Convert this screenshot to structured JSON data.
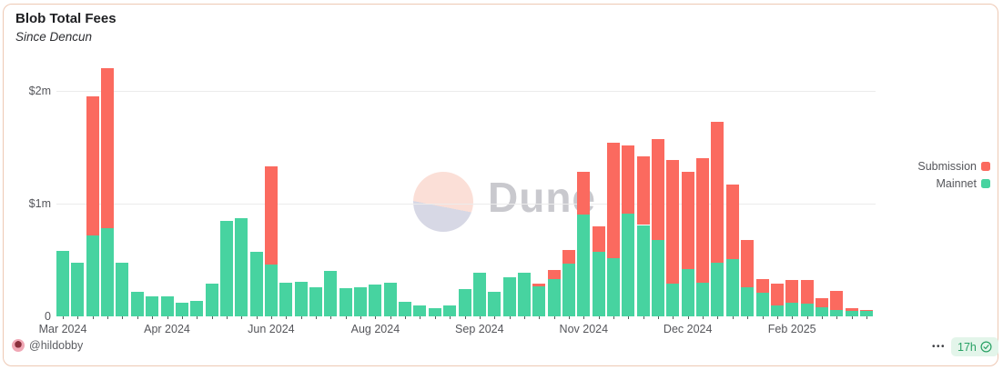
{
  "card": {
    "title": "Blob Total Fees",
    "subtitle": "Since Dencun",
    "watermark": "Dune",
    "footer": {
      "author": "@hildobby",
      "menu": "•••",
      "refresh_badge": "17h",
      "refresh_icon": "check-circle-icon"
    }
  },
  "legend": [
    {
      "label": "Submission",
      "color": "#fb6a5f"
    },
    {
      "label": "Mainnet",
      "color": "#47d3a0"
    }
  ],
  "colors": {
    "submission": "#fb6a5f",
    "mainnet": "#47d3a0",
    "card_border": "#eec9b4",
    "gridline": "#ececec",
    "axis_text": "#55565b",
    "badge_bg": "#e3f5ea",
    "badge_text": "#28a164",
    "watermark_text": "#c9c9ce",
    "watermark_pink": "#fbdfd7",
    "watermark_lavender": "#d7d8e5"
  },
  "chart_data": {
    "type": "bar",
    "stacked": true,
    "title": "Blob Total Fees",
    "subtitle": "Since Dencun",
    "unit": "USD millions",
    "grid": "horizontal",
    "legend_position": "right",
    "ylim": [
      0,
      2.3
    ],
    "y_ticks": [
      {
        "label": "0",
        "value": 0
      },
      {
        "label": "$1m",
        "value": 1
      },
      {
        "label": "$2m",
        "value": 2
      }
    ],
    "x_tick_labels": [
      "Mar 2024",
      "Apr 2024",
      "Jun 2024",
      "Aug 2024",
      "Sep 2024",
      "Nov 2024",
      "Dec 2024",
      "Feb 2025"
    ],
    "x_tick_bar_indices": [
      0,
      7,
      14,
      21,
      28,
      35,
      42,
      49
    ],
    "x_description": "weekly bars since Dencun upgrade (Mar 2024 - Mar 2025)",
    "series": [
      {
        "name": "Mainnet",
        "color": "#47d3a0",
        "values": [
          0.58,
          0.48,
          0.72,
          0.78,
          0.48,
          0.22,
          0.18,
          0.18,
          0.12,
          0.14,
          0.29,
          0.85,
          0.87,
          0.57,
          0.46,
          0.3,
          0.31,
          0.26,
          0.4,
          0.25,
          0.26,
          0.28,
          0.3,
          0.13,
          0.1,
          0.07,
          0.1,
          0.24,
          0.39,
          0.22,
          0.35,
          0.39,
          0.27,
          0.33,
          0.47,
          0.9,
          0.57,
          0.52,
          0.91,
          0.81,
          0.68,
          0.29,
          0.42,
          0.3,
          0.48,
          0.51,
          0.26,
          0.21,
          0.1,
          0.12,
          0.11,
          0.08,
          0.06,
          0.05,
          0.05
        ]
      },
      {
        "name": "Submission",
        "color": "#fb6a5f",
        "values": [
          0,
          0,
          1.23,
          1.42,
          0,
          0,
          0,
          0,
          0,
          0,
          0,
          0,
          0,
          0,
          0.87,
          0,
          0,
          0,
          0,
          0,
          0,
          0,
          0,
          0,
          0,
          0,
          0,
          0,
          0,
          0,
          0,
          0,
          0.02,
          0.08,
          0.12,
          0.38,
          0.23,
          1.02,
          0.61,
          0.61,
          0.89,
          1.1,
          0.86,
          1.1,
          1.25,
          0.66,
          0.42,
          0.12,
          0.19,
          0.2,
          0.21,
          0.08,
          0.17,
          0.02,
          0.01
        ]
      }
    ]
  }
}
